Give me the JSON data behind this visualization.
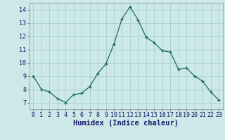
{
  "x": [
    0,
    1,
    2,
    3,
    4,
    5,
    6,
    7,
    8,
    9,
    10,
    11,
    12,
    13,
    14,
    15,
    16,
    17,
    18,
    19,
    20,
    21,
    22,
    23
  ],
  "y": [
    9.0,
    8.0,
    7.8,
    7.3,
    7.0,
    7.6,
    7.7,
    8.2,
    9.2,
    9.9,
    11.4,
    13.3,
    14.2,
    13.2,
    11.9,
    11.5,
    10.9,
    10.8,
    9.5,
    9.6,
    9.0,
    8.6,
    7.8,
    7.2
  ],
  "xlabel": "Humidex (Indice chaleur)",
  "line_color": "#1a6b5a",
  "marker": "+",
  "marker_size": 3.5,
  "marker_linewidth": 1.0,
  "line_width": 0.9,
  "bg_color": "#cce8e8",
  "grid_color": "#aacfcf",
  "xlim": [
    -0.5,
    23.5
  ],
  "ylim": [
    6.5,
    14.5
  ],
  "yticks": [
    7,
    8,
    9,
    10,
    11,
    12,
    13,
    14
  ],
  "xticks": [
    0,
    1,
    2,
    3,
    4,
    5,
    6,
    7,
    8,
    9,
    10,
    11,
    12,
    13,
    14,
    15,
    16,
    17,
    18,
    19,
    20,
    21,
    22,
    23
  ],
  "xtick_labels": [
    "0",
    "1",
    "2",
    "3",
    "4",
    "5",
    "6",
    "7",
    "8",
    "9",
    "10",
    "11",
    "12",
    "13",
    "14",
    "15",
    "16",
    "17",
    "18",
    "19",
    "20",
    "21",
    "22",
    "23"
  ],
  "tick_fontsize": 6,
  "xlabel_fontsize": 7.5,
  "tick_color": "#1a1a6a",
  "xlabel_color": "#1a1a6a"
}
